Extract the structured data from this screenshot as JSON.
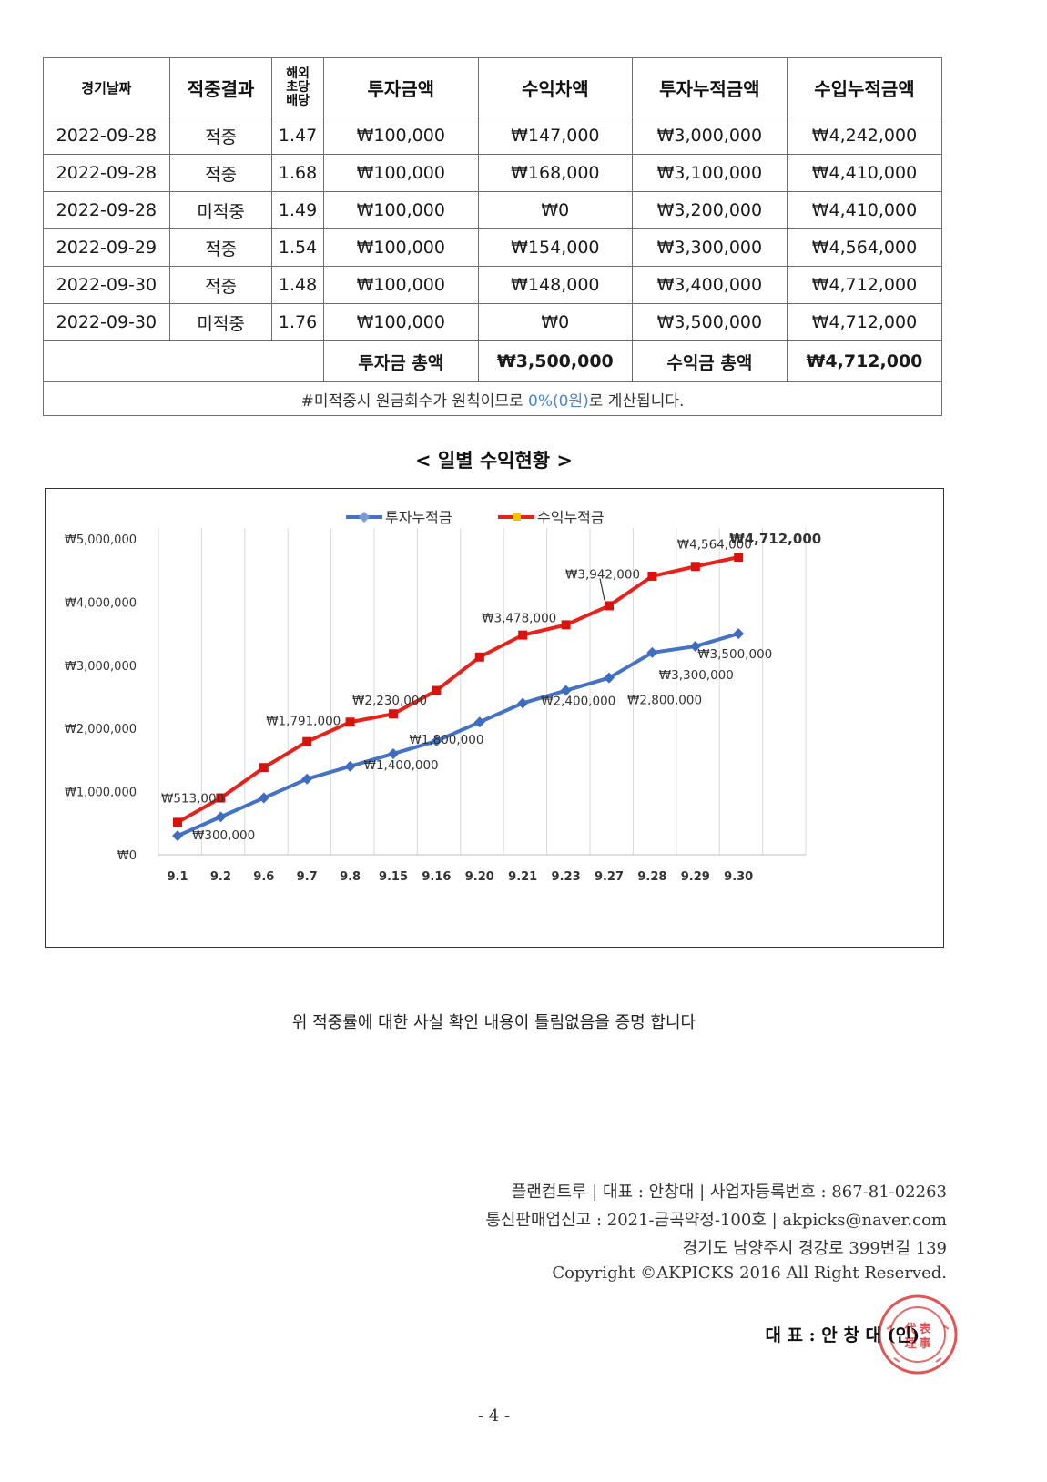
{
  "table": {
    "headers": {
      "date": "경기날짜",
      "result": "적중결과",
      "odds_1": "해외",
      "odds_2": "초당",
      "odds_3": "배당",
      "investment": "투자금액",
      "profit": "수익차액",
      "cum_investment": "투자누적금액",
      "cum_income": "수입누적금액"
    },
    "rows": [
      {
        "date": "2022-09-28",
        "result": "적중",
        "odds": "1.47",
        "investment": "₩100,000",
        "profit": "₩147,000",
        "cum_investment": "₩3,000,000",
        "cum_income": "₩4,242,000"
      },
      {
        "date": "2022-09-28",
        "result": "적중",
        "odds": "1.68",
        "investment": "₩100,000",
        "profit": "₩168,000",
        "cum_investment": "₩3,100,000",
        "cum_income": "₩4,410,000"
      },
      {
        "date": "2022-09-28",
        "result": "미적중",
        "odds": "1.49",
        "investment": "₩100,000",
        "profit": "₩0",
        "cum_investment": "₩3,200,000",
        "cum_income": "₩4,410,000"
      },
      {
        "date": "2022-09-29",
        "result": "적중",
        "odds": "1.54",
        "investment": "₩100,000",
        "profit": "₩154,000",
        "cum_investment": "₩3,300,000",
        "cum_income": "₩4,564,000"
      },
      {
        "date": "2022-09-30",
        "result": "적중",
        "odds": "1.48",
        "investment": "₩100,000",
        "profit": "₩148,000",
        "cum_investment": "₩3,400,000",
        "cum_income": "₩4,712,000"
      },
      {
        "date": "2022-09-30",
        "result": "미적중",
        "odds": "1.76",
        "investment": "₩100,000",
        "profit": "₩0",
        "cum_investment": "₩3,500,000",
        "cum_income": "₩4,712,000"
      }
    ],
    "totals": {
      "investment_label": "투자금 총액",
      "investment_value": "₩3,500,000",
      "income_label": "수익금 총액",
      "income_value": "₩4,712,000"
    },
    "note": {
      "before": "#미적중시 원금회수가 원칙이므로 ",
      "highlight": "0%(0원)",
      "after": "로 계산됩니다."
    },
    "colors": {
      "hit": "#e0282a",
      "miss": "#2f7fd0"
    }
  },
  "chart_title": "< 일별 수익현황 >",
  "chart_data": {
    "type": "line",
    "categories": [
      "9.1",
      "9.2",
      "9.6",
      "9.7",
      "9.8",
      "9.15",
      "9.16",
      "9.20",
      "9.21",
      "9.23",
      "9.27",
      "9.28",
      "9.29",
      "9.30"
    ],
    "series": [
      {
        "name": "투자누적금",
        "color": "#4472c4",
        "marker": "diamond",
        "values": [
          300000,
          600000,
          900000,
          1200000,
          1400000,
          1600000,
          1800000,
          2100000,
          2400000,
          2600000,
          2800000,
          3200000,
          3300000,
          3500000
        ]
      },
      {
        "name": "수익누적금",
        "color": "#e5231b",
        "marker": "square",
        "values": [
          513000,
          900000,
          1380000,
          1791000,
          2100000,
          2230000,
          2600000,
          3130000,
          3478000,
          3640000,
          3942000,
          4410000,
          4564000,
          4712000
        ]
      }
    ],
    "ylim": [
      0,
      5000000
    ],
    "yticks": [
      "₩0",
      "₩1,000,000",
      "₩2,000,000",
      "₩3,000,000",
      "₩4,000,000",
      "₩5,000,000"
    ],
    "ytick_values": [
      0,
      1000000,
      2000000,
      3000000,
      4000000,
      5000000
    ],
    "grid": "vertical",
    "legend": "top-center",
    "data_labels": [
      {
        "series": 1,
        "index": 0,
        "text": "₩513,000"
      },
      {
        "series": 1,
        "index": 3,
        "text": "₩1,791,000"
      },
      {
        "series": 1,
        "index": 5,
        "text": "₩2,230,000"
      },
      {
        "series": 1,
        "index": 8,
        "text": "₩3,478,000"
      },
      {
        "series": 1,
        "index": 10,
        "text": "₩3,942,000"
      },
      {
        "series": 1,
        "index": 12,
        "text": "₩4,564,000"
      },
      {
        "series": 1,
        "index": 13,
        "text": "₩4,712,000",
        "bold": true
      },
      {
        "series": 0,
        "index": 0,
        "text": "₩300,000"
      },
      {
        "series": 0,
        "index": 4,
        "text": "₩1,400,000"
      },
      {
        "series": 0,
        "index": 6,
        "text": "₩1,800,000"
      },
      {
        "series": 0,
        "index": 8,
        "text": "₩2,400,000"
      },
      {
        "series": 0,
        "index": 10,
        "text": "₩2,800,000"
      },
      {
        "series": 0,
        "index": 12,
        "text": "₩3,300,000"
      },
      {
        "series": 0,
        "index": 13,
        "text": "₩3,500,000"
      }
    ]
  },
  "certification": "위 적중률에 대한 사실 확인 내용이 틀림없음을 증명 합니다",
  "footer": {
    "line1": "플랜컴트루 | 대표 : 안창대 | 사업자등록번호 : 867-81-02263",
    "line2": "통신판매업신고 : 2021-금곡약정-100호 | akpicks@naver.com",
    "line3": "경기도 남양주시 경강로 399번길 139",
    "line4": "Copyright ©AKPICKS 2016 All Right Reserved.",
    "representative": "대 표 : 안 창 대 (인)"
  },
  "seal_text": "代表理事",
  "page_number": "- 4 -"
}
